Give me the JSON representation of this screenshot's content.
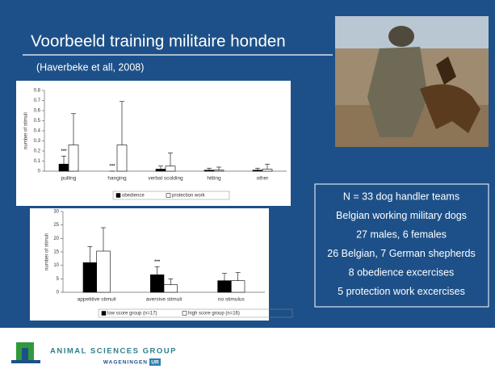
{
  "slide": {
    "title": "Voorbeeld training militaire honden",
    "citation": "(Haverbeke et all, 2008)",
    "facts": [
      "N = 33 dog handler teams",
      "Belgian working military dogs",
      "27 males, 6 females",
      "26 Belgian, 7 German shepherds",
      "8 obedience excercises",
      "5 protection work excercises"
    ],
    "logo": {
      "name": "ANIMAL SCIENCES GROUP",
      "org": "WAGENINGEN",
      "badge": "UR"
    }
  },
  "chart_data": [
    {
      "type": "bar",
      "ylabel": "number of stimuli",
      "categories": [
        "pulling",
        "hanging",
        "verbal scolding",
        "hitting",
        "other"
      ],
      "series": [
        {
          "name": "obedience",
          "color": "#000000",
          "values": [
            0.07,
            0,
            0.02,
            0.01,
            0.01
          ],
          "errors": [
            0.08,
            0,
            0.03,
            0.02,
            0.02
          ]
        },
        {
          "name": "protection work",
          "color": "#ffffff",
          "values": [
            0.26,
            0.26,
            0.05,
            0.01,
            0.02
          ],
          "errors": [
            0.31,
            0.43,
            0.13,
            0.03,
            0.05
          ]
        }
      ],
      "significance": [
        "***",
        "***",
        null,
        null,
        null
      ],
      "ylim": [
        0,
        0.8
      ],
      "yticks": [
        0,
        0.1,
        0.2,
        0.3,
        0.4,
        0.5,
        0.6,
        0.7,
        0.8
      ]
    },
    {
      "type": "bar",
      "ylabel": "number of stimuli",
      "categories": [
        "appetitive stimuli",
        "aversive stimuli",
        "no stimulus"
      ],
      "series": [
        {
          "name": "low score group (n=17)",
          "color": "#000000",
          "values": [
            11,
            6.5,
            4.3
          ],
          "errors": [
            6,
            3,
            2.7
          ]
        },
        {
          "name": "high score group (n=16)",
          "color": "#ffffff",
          "values": [
            15.3,
            2.8,
            4.3
          ],
          "errors": [
            8.7,
            2.2,
            3
          ]
        }
      ],
      "significance": [
        null,
        "***",
        null
      ],
      "ylim": [
        0,
        30
      ],
      "yticks": [
        0,
        5,
        10,
        15,
        20,
        25,
        30
      ]
    }
  ]
}
